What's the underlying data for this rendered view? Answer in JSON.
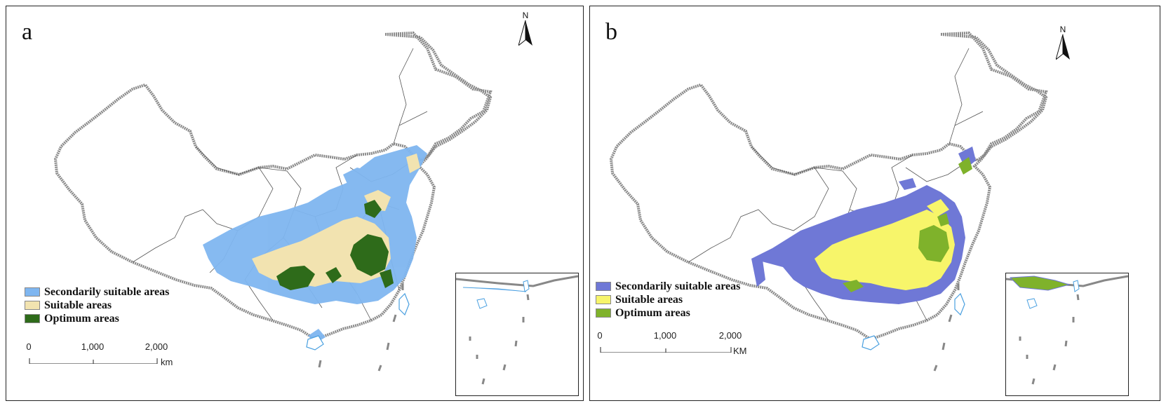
{
  "panels": [
    {
      "letter": "a",
      "legend": [
        {
          "label": "Secondarily suitable areas",
          "color": "#7fb6f0"
        },
        {
          "label": "Suitable areas",
          "color": "#f2e3b0"
        },
        {
          "label": "Optimum areas",
          "color": "#2e6b1a"
        }
      ],
      "scale": {
        "ticks": [
          "0",
          "1,000",
          "2,000"
        ],
        "unit": "km"
      },
      "north": "N"
    },
    {
      "letter": "b",
      "legend": [
        {
          "label": "Secondarily suitable areas",
          "color": "#6f78d6"
        },
        {
          "label": "Suitable areas",
          "color": "#f7f56a"
        },
        {
          "label": "Optimum  areas",
          "color": "#7fb22b"
        }
      ],
      "scale": {
        "ticks": [
          "0",
          "1,000",
          "2,000"
        ],
        "unit": "KM"
      },
      "north": "N"
    }
  ]
}
